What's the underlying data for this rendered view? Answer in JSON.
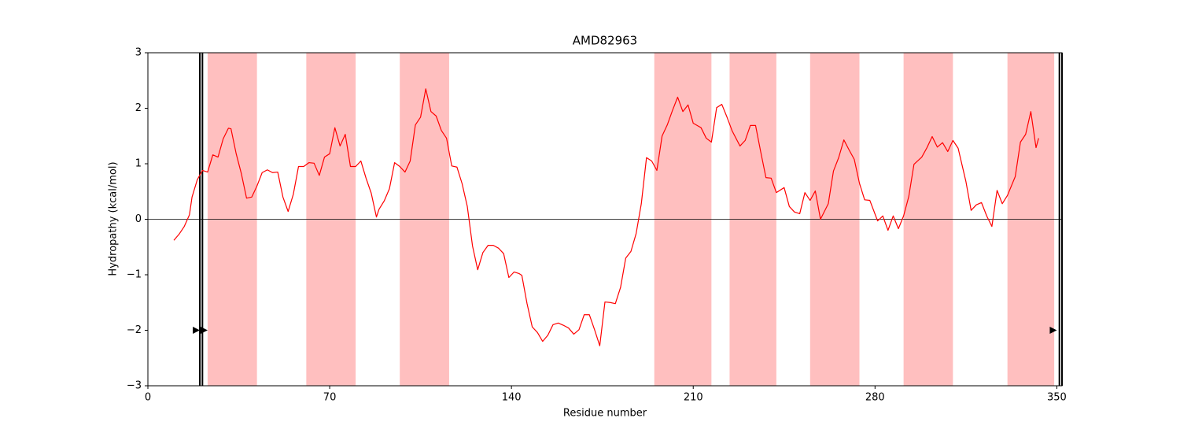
{
  "chart_data": {
    "type": "line",
    "title": "AMD82963",
    "xlabel": "Residue number",
    "ylabel": "Hydropathy (kcal/mol)",
    "color": "#ff0000",
    "region_color": "#ffbfbf",
    "xlim": [
      0,
      352
    ],
    "ylim": [
      -3,
      3
    ],
    "xticks": [
      0,
      70,
      140,
      210,
      280,
      350
    ],
    "yticks": [
      {
        "value": -3,
        "label": "−3"
      },
      {
        "value": -2,
        "label": "−2"
      },
      {
        "value": -1,
        "label": "−1"
      },
      0,
      1,
      2,
      3
    ],
    "hline": 0,
    "regions": [
      [
        23,
        42
      ],
      [
        61,
        80
      ],
      [
        97,
        116
      ],
      [
        195,
        217
      ],
      [
        224,
        242
      ],
      [
        255,
        274
      ],
      [
        291,
        310
      ],
      [
        331,
        349
      ]
    ],
    "vlines": [
      20,
      21,
      351,
      352
    ],
    "markers": {
      "x": [
        18.5,
        21.5,
        348.5
      ],
      "y": [
        -2,
        -2,
        -2
      ]
    },
    "x": [
      10,
      12,
      14,
      16,
      17,
      19,
      21,
      23,
      25,
      27,
      29,
      31,
      32,
      34,
      36,
      38,
      40,
      42,
      44,
      46,
      48,
      50,
      52,
      54,
      56,
      58,
      60,
      62,
      64,
      66,
      68,
      70,
      72,
      74,
      76,
      78,
      80,
      82,
      84,
      86,
      88,
      89,
      91,
      93,
      95,
      97,
      99,
      101,
      103,
      105,
      107,
      109,
      111,
      113,
      115,
      117,
      119,
      121,
      123,
      125,
      127,
      129,
      131,
      133,
      135,
      137,
      139,
      141,
      143,
      144,
      146,
      148,
      150,
      152,
      154,
      156,
      158,
      160,
      162,
      164,
      166,
      168,
      170,
      172,
      174,
      176,
      178,
      180,
      182,
      184,
      186,
      188,
      190,
      192,
      194,
      196,
      198,
      200,
      202,
      204,
      206,
      208,
      210,
      213,
      215,
      217,
      219,
      221,
      223,
      225,
      228,
      230,
      232,
      234,
      236,
      238,
      240,
      242,
      245,
      247,
      249,
      251,
      253,
      255,
      257,
      259,
      262,
      264,
      266,
      268,
      270,
      272,
      274,
      276,
      278,
      281,
      283,
      285,
      287,
      289,
      291,
      293,
      295,
      298,
      300,
      302,
      304,
      306,
      308,
      310,
      312,
      315,
      317,
      319,
      321,
      323,
      325,
      327,
      329,
      331,
      334,
      336,
      338,
      340,
      342,
      343
    ],
    "values": [
      -0.38,
      -0.27,
      -0.13,
      0.08,
      0.4,
      0.71,
      0.88,
      0.85,
      1.16,
      1.12,
      1.45,
      1.64,
      1.63,
      1.18,
      0.82,
      0.38,
      0.4,
      0.6,
      0.84,
      0.89,
      0.84,
      0.85,
      0.4,
      0.14,
      0.45,
      0.95,
      0.95,
      1.02,
      1.01,
      0.79,
      1.12,
      1.18,
      1.65,
      1.32,
      1.53,
      0.95,
      0.95,
      1.05,
      0.74,
      0.47,
      0.04,
      0.18,
      0.33,
      0.55,
      1.02,
      0.95,
      0.85,
      1.05,
      1.7,
      1.84,
      2.35,
      1.94,
      1.86,
      1.6,
      1.46,
      0.96,
      0.94,
      0.64,
      0.23,
      -0.48,
      -0.91,
      -0.6,
      -0.47,
      -0.47,
      -0.52,
      -0.62,
      -1.05,
      -0.95,
      -0.98,
      -1.01,
      -1.52,
      -1.94,
      -2.04,
      -2.2,
      -2.09,
      -1.9,
      -1.87,
      -1.91,
      -1.96,
      -2.07,
      -1.99,
      -1.72,
      -1.72,
      -1.99,
      -2.28,
      -1.49,
      -1.5,
      -1.52,
      -1.23,
      -0.7,
      -0.58,
      -0.26,
      0.28,
      1.11,
      1.05,
      0.88,
      1.5,
      1.7,
      1.96,
      2.2,
      1.94,
      2.06,
      1.73,
      1.65,
      1.46,
      1.39,
      2.01,
      2.07,
      1.84,
      1.59,
      1.32,
      1.42,
      1.69,
      1.69,
      1.21,
      0.75,
      0.74,
      0.48,
      0.57,
      0.23,
      0.13,
      0.1,
      0.48,
      0.34,
      0.51,
      0,
      0.28,
      0.87,
      1.11,
      1.43,
      1.25,
      1.08,
      0.65,
      0.35,
      0.34,
      -0.03,
      0.06,
      -0.2,
      0.06,
      -0.17,
      0.06,
      0.41,
      0.99,
      1.12,
      1.29,
      1.49,
      1.3,
      1.38,
      1.22,
      1.42,
      1.28,
      0.68,
      0.16,
      0.26,
      0.3,
      0.06,
      -0.13,
      0.52,
      0.28,
      0.43,
      0.77,
      1.39,
      1.53,
      1.94,
      1.29,
      1.46
    ]
  }
}
